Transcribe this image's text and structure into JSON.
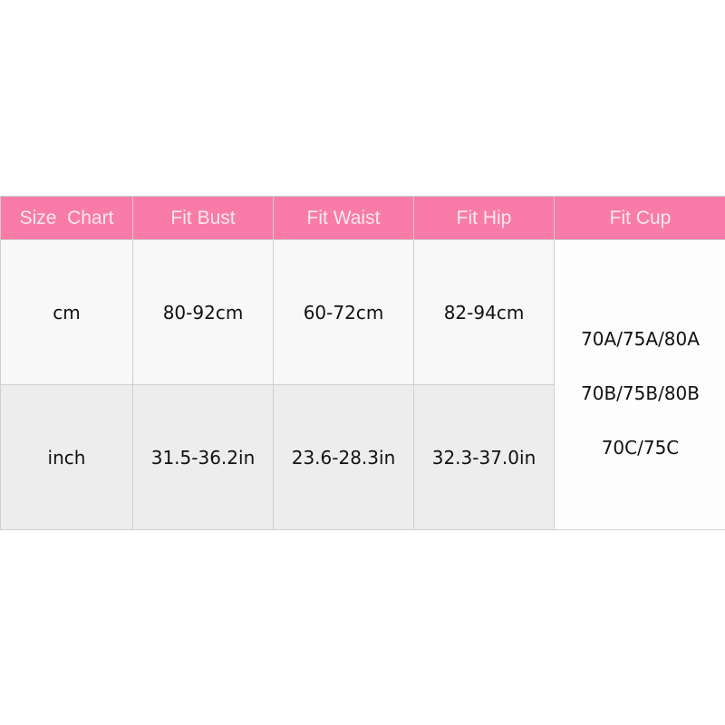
{
  "colors": {
    "header_bg": "#f87ca7",
    "header_text": "#fde8ef",
    "row1_bg": "#f8f8f8",
    "row2_bg": "#ededed"
  },
  "table": {
    "headers": [
      "Size  Chart",
      "Fit Bust",
      "Fit Waist",
      "Fit Hip",
      "Fit Cup"
    ],
    "rows": [
      [
        "cm",
        "80-92cm",
        "60-72cm",
        "82-94cm"
      ],
      [
        "inch",
        "31.5-36.2in",
        "23.6-28.3in",
        "32.3-37.0in"
      ]
    ],
    "cup_sizes": [
      "70A/75A/80A",
      "70B/75B/80B",
      "70C/75C"
    ]
  }
}
